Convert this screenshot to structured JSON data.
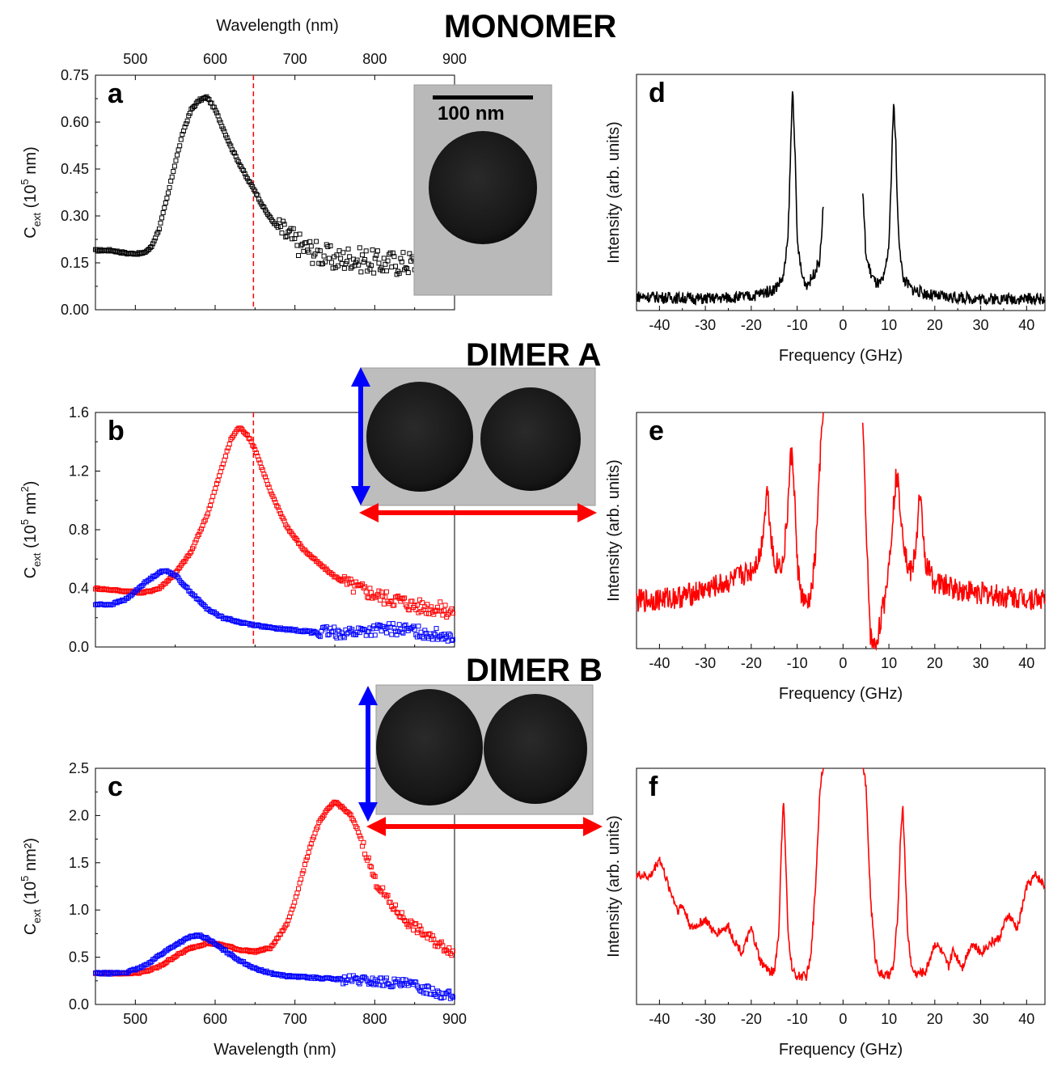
{
  "headings": {
    "monomer": "MONOMER",
    "dimer_a": "DIMER A",
    "dimer_b": "DIMER B"
  },
  "scale_bar_label": "100 nm",
  "colors": {
    "black": "#000000",
    "red": "#ff0000",
    "blue": "#0000ff",
    "dashed_line": "#ff0000"
  },
  "chart_data": [
    {
      "id": "a",
      "panel_label": "a",
      "type": "scatter",
      "xlabel_top": "Wavelength (nm)",
      "xlim": [
        450,
        900
      ],
      "xticks": [
        500,
        600,
        700,
        800,
        900
      ],
      "ylim": [
        0,
        0.75
      ],
      "yticks": [
        "0.00",
        "0.15",
        "0.30",
        "0.45",
        "0.60",
        "0.75"
      ],
      "ylabel": {
        "main": "C",
        "sub": "ext",
        "rest1": " (10",
        "sup": "5",
        "rest2": " nm)"
      },
      "vline_x": 648,
      "series": [
        {
          "color": "#000000",
          "x": [
            450,
            470,
            490,
            510,
            520,
            530,
            540,
            550,
            560,
            570,
            580,
            590,
            600,
            610,
            620,
            630,
            640,
            650,
            660,
            670,
            680,
            690,
            700,
            710,
            720,
            730,
            740,
            750,
            760,
            770,
            780,
            790,
            800
          ],
          "y": [
            0.19,
            0.19,
            0.18,
            0.18,
            0.2,
            0.26,
            0.36,
            0.47,
            0.57,
            0.64,
            0.67,
            0.68,
            0.64,
            0.58,
            0.52,
            0.47,
            0.42,
            0.38,
            0.33,
            0.29,
            0.26,
            0.24,
            0.22,
            0.2,
            0.19,
            0.18,
            0.17,
            0.16,
            0.16,
            0.17,
            0.16,
            0.16,
            0.15
          ],
          "noise_from_x": 680,
          "noise_amplitude": 0.04
        }
      ]
    },
    {
      "id": "b",
      "panel_label": "b",
      "type": "scatter",
      "xlim": [
        450,
        900
      ],
      "xticks": [],
      "ylim": [
        0,
        1.6
      ],
      "yticks": [
        "0.0",
        "0.4",
        "0.8",
        "1.2",
        "1.6"
      ],
      "ylabel": {
        "main": "C",
        "sub": "ext",
        "rest1": " (10",
        "sup": "5",
        "rest2": " nm",
        "sup2": "2",
        "rest3": ")"
      },
      "vline_x": 648,
      "series": [
        {
          "name": "",
          "color": "#ff0000",
          "x": [
            450,
            470,
            490,
            510,
            530,
            550,
            570,
            590,
            610,
            620,
            630,
            640,
            650,
            660,
            670,
            690,
            710,
            730,
            750,
            770,
            790,
            810,
            830,
            850,
            870,
            890,
            900
          ],
          "y": [
            0.4,
            0.39,
            0.38,
            0.37,
            0.4,
            0.5,
            0.65,
            0.9,
            1.25,
            1.42,
            1.5,
            1.45,
            1.35,
            1.2,
            1.05,
            0.82,
            0.67,
            0.57,
            0.48,
            0.42,
            0.38,
            0.34,
            0.32,
            0.28,
            0.27,
            0.25,
            0.24
          ],
          "noise_from_x": 760,
          "noise_amplitude": 0.05
        },
        {
          "name": "",
          "color": "#0000ff",
          "x": [
            450,
            470,
            490,
            510,
            530,
            540,
            550,
            570,
            590,
            610,
            630,
            650,
            670,
            690,
            710,
            730,
            750,
            770,
            790,
            810,
            830,
            850,
            870,
            890,
            900
          ],
          "y": [
            0.29,
            0.29,
            0.33,
            0.43,
            0.51,
            0.52,
            0.49,
            0.37,
            0.26,
            0.2,
            0.17,
            0.15,
            0.13,
            0.12,
            0.11,
            0.1,
            0.1,
            0.1,
            0.11,
            0.12,
            0.12,
            0.11,
            0.09,
            0.08,
            0.07
          ],
          "noise_from_x": 720,
          "noise_amplitude": 0.04
        }
      ]
    },
    {
      "id": "c",
      "panel_label": "c",
      "type": "scatter",
      "xlabel": "Wavelength (nm)",
      "xlim": [
        450,
        900
      ],
      "xticks": [
        500,
        600,
        700,
        800,
        900
      ],
      "ylim": [
        0,
        2.5
      ],
      "yticks": [
        "0.0",
        "0.5",
        "1.0",
        "1.5",
        "2.0",
        "2.5"
      ],
      "ylabel": {
        "main": "C",
        "sub": "ext",
        "rest1": " (10",
        "sup": "5",
        "rest2": " nm²)"
      },
      "series": [
        {
          "name": "",
          "color": "#ff0000",
          "x": [
            450,
            470,
            490,
            510,
            530,
            550,
            570,
            590,
            610,
            630,
            650,
            670,
            690,
            700,
            710,
            720,
            730,
            740,
            750,
            760,
            770,
            780,
            790,
            800,
            820,
            840,
            860,
            880,
            900
          ],
          "y": [
            0.33,
            0.33,
            0.33,
            0.34,
            0.4,
            0.51,
            0.6,
            0.65,
            0.63,
            0.58,
            0.56,
            0.6,
            0.85,
            1.1,
            1.4,
            1.7,
            1.92,
            2.05,
            2.15,
            2.08,
            2.0,
            1.82,
            1.58,
            1.32,
            1.06,
            0.88,
            0.76,
            0.64,
            0.55
          ],
          "noise_from_x": 780,
          "noise_amplitude": 0.05
        },
        {
          "name": "",
          "color": "#0000ff",
          "x": [
            450,
            470,
            490,
            510,
            530,
            550,
            570,
            580,
            590,
            610,
            630,
            650,
            670,
            690,
            710,
            730,
            750,
            770,
            790,
            810,
            830,
            850,
            870,
            890,
            900
          ],
          "y": [
            0.33,
            0.33,
            0.34,
            0.4,
            0.52,
            0.63,
            0.72,
            0.73,
            0.7,
            0.58,
            0.47,
            0.38,
            0.33,
            0.3,
            0.29,
            0.28,
            0.27,
            0.26,
            0.25,
            0.24,
            0.22,
            0.2,
            0.15,
            0.1,
            0.08
          ],
          "noise_from_x": 760,
          "noise_amplitude": 0.05
        }
      ]
    },
    {
      "id": "d",
      "panel_label": "d",
      "type": "line",
      "xlabel": "Frequency (GHz)",
      "ylabel": "Intensity (arb. units)",
      "xlim": [
        -45,
        44
      ],
      "xticks": [
        -40,
        -30,
        -20,
        -10,
        0,
        10,
        20,
        30,
        40
      ],
      "ylim": [
        0,
        1
      ],
      "gap": [
        -4.3,
        4.3
      ],
      "series": [
        {
          "color": "#000000",
          "x": [
            -45,
            -30,
            -20,
            -15,
            -13,
            -12,
            -11.5,
            -11,
            -10.5,
            -10,
            -9,
            -8,
            -7,
            -6,
            -5,
            -4.3,
            4.3,
            5,
            6,
            7,
            8,
            9,
            10,
            10.5,
            11,
            11.5,
            12,
            13,
            15,
            20,
            30,
            44
          ],
          "y": [
            0.06,
            0.05,
            0.06,
            0.09,
            0.14,
            0.3,
            0.62,
            0.95,
            0.7,
            0.3,
            0.15,
            0.11,
            0.13,
            0.17,
            0.22,
            0.45,
            0.5,
            0.23,
            0.16,
            0.12,
            0.11,
            0.14,
            0.28,
            0.55,
            0.9,
            0.7,
            0.35,
            0.14,
            0.09,
            0.06,
            0.05,
            0.05
          ],
          "noise_amplitude": 0.025
        }
      ]
    },
    {
      "id": "e",
      "panel_label": "e",
      "type": "line",
      "xlabel": "Frequency (GHz)",
      "ylabel": "Intensity (arb. units)",
      "xlim": [
        -45,
        44
      ],
      "xticks": [
        -40,
        -30,
        -20,
        -10,
        0,
        10,
        20,
        30,
        40
      ],
      "ylim": [
        0,
        1
      ],
      "gap": [
        -4.3,
        4.3
      ],
      "series": [
        {
          "color": "#ff0000",
          "x": [
            -45,
            -35,
            -25,
            -20,
            -18,
            -17,
            -16.5,
            -16,
            -15,
            -13,
            -12,
            -11.5,
            -11,
            -10.5,
            -10,
            -9,
            -8,
            -7,
            -6,
            -5,
            -4.3,
            4.3,
            5,
            6,
            7,
            8,
            9,
            10,
            11,
            11.5,
            12,
            13,
            14,
            15,
            16,
            16.5,
            17,
            18,
            20,
            25,
            35,
            44
          ],
          "y": [
            0.2,
            0.22,
            0.28,
            0.33,
            0.4,
            0.58,
            0.69,
            0.55,
            0.36,
            0.36,
            0.6,
            0.8,
            0.82,
            0.62,
            0.36,
            0.22,
            0.18,
            0.22,
            0.4,
            0.8,
            1.0,
            1.0,
            0.5,
            0.05,
            0.0,
            0.1,
            0.2,
            0.36,
            0.6,
            0.72,
            0.7,
            0.5,
            0.35,
            0.32,
            0.45,
            0.62,
            0.6,
            0.36,
            0.28,
            0.25,
            0.22,
            0.21
          ],
          "noise_amplitude": 0.05
        }
      ]
    },
    {
      "id": "f",
      "panel_label": "f",
      "type": "line",
      "xlabel": "Frequency (GHz)",
      "ylabel": "Intensity (arb. units)",
      "xlim": [
        -45,
        44
      ],
      "xticks": [
        -40,
        -30,
        -20,
        -10,
        0,
        10,
        20,
        30,
        40
      ],
      "ylim": [
        0,
        1
      ],
      "gap": [
        -4.3,
        4.3
      ],
      "series": [
        {
          "color": "#ff0000",
          "x": [
            -45,
            -42,
            -40,
            -38,
            -36,
            -35,
            -33,
            -30,
            -28,
            -25,
            -24,
            -22,
            -20,
            -19,
            -18,
            -16,
            -15,
            -14,
            -13.5,
            -13,
            -12.5,
            -12,
            -11,
            -10,
            -8,
            -7,
            -6,
            -5,
            -4.5,
            -4.3,
            4.3,
            4.5,
            5,
            6,
            7,
            8,
            10,
            11,
            12,
            12.5,
            13,
            13.5,
            14,
            15,
            16,
            18,
            20,
            21,
            23,
            24,
            26,
            28,
            30,
            32,
            34,
            36,
            38,
            40,
            42,
            44
          ],
          "y": [
            0.55,
            0.54,
            0.62,
            0.5,
            0.4,
            0.42,
            0.32,
            0.36,
            0.3,
            0.33,
            0.28,
            0.22,
            0.32,
            0.25,
            0.18,
            0.14,
            0.14,
            0.3,
            0.62,
            0.88,
            0.62,
            0.3,
            0.14,
            0.12,
            0.12,
            0.2,
            0.5,
            0.92,
            1.0,
            1.0,
            1.0,
            1.0,
            0.92,
            0.45,
            0.2,
            0.13,
            0.12,
            0.16,
            0.4,
            0.7,
            0.85,
            0.62,
            0.32,
            0.15,
            0.13,
            0.14,
            0.26,
            0.24,
            0.16,
            0.23,
            0.16,
            0.26,
            0.22,
            0.26,
            0.28,
            0.38,
            0.32,
            0.5,
            0.55,
            0.5
          ],
          "noise_amplitude": 0.02
        }
      ]
    }
  ]
}
